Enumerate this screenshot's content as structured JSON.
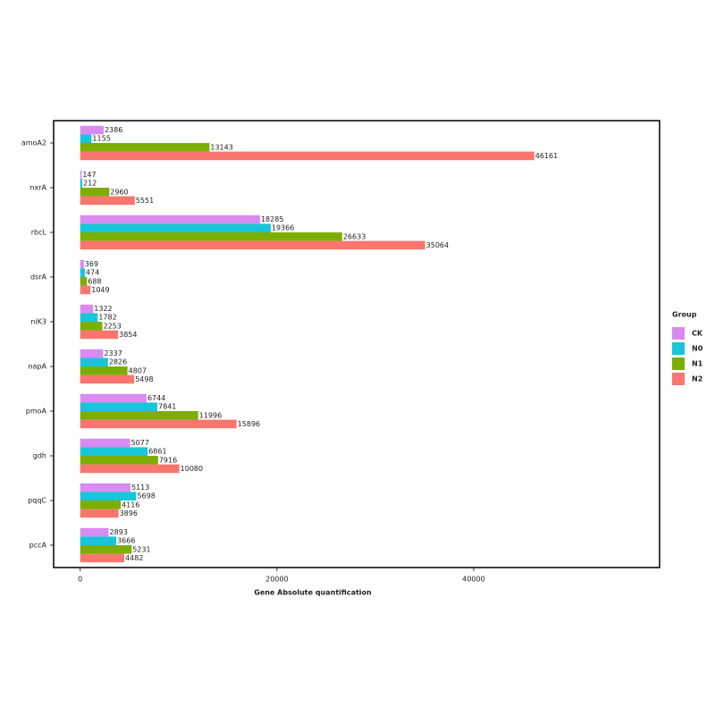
{
  "chart_data": {
    "type": "hbar",
    "x_label": "Gene Absolute quantification",
    "categories": [
      "amoA2",
      "nxrA",
      "rbcL",
      "dsrA",
      "niK3",
      "napA",
      "pmoA",
      "gdh",
      "pqqC",
      "pccA"
    ],
    "series": [
      {
        "name": "CK",
        "color": "#d98bf2",
        "values": [
          2386,
          147,
          18285,
          369,
          1322,
          2337,
          6744,
          5077,
          5113,
          2893
        ]
      },
      {
        "name": "N0",
        "color": "#19c6d9",
        "values": [
          1155,
          212,
          19366,
          474,
          1782,
          2826,
          7841,
          6861,
          5698,
          3666
        ]
      },
      {
        "name": "N1",
        "color": "#7cae00",
        "values": [
          13143,
          2960,
          26633,
          688,
          2253,
          4807,
          11996,
          7916,
          4116,
          5231
        ]
      },
      {
        "name": "N2",
        "color": "#f8766d",
        "values": [
          46161,
          5551,
          35064,
          1049,
          3854,
          5498,
          15896,
          10080,
          3896,
          4482
        ]
      }
    ],
    "legend_title": "Group",
    "legend_position": "right",
    "xlim": [
      -2700,
      58900
    ],
    "xticks": [
      0,
      20000,
      40000
    ],
    "grid": false
  }
}
